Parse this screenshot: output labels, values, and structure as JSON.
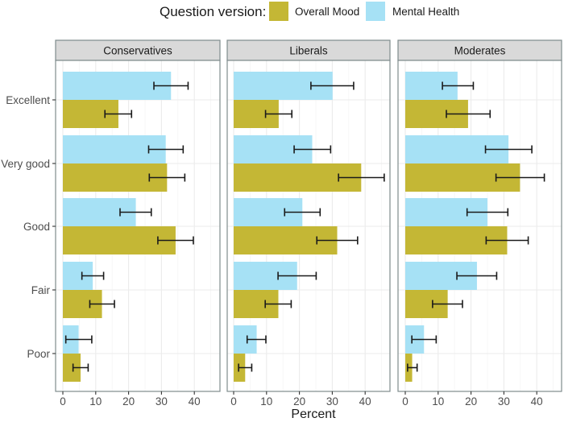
{
  "chart_data": {
    "type": "bar",
    "orientation": "horizontal",
    "title": "",
    "xlabel": "Percent",
    "ylabel": "",
    "xlim": [
      0,
      47.5
    ],
    "x_ticks": [
      0,
      10,
      20,
      30,
      40
    ],
    "x_tick_labels": [
      "0",
      "10",
      "20",
      "30",
      "40"
    ],
    "grid": true,
    "legend": {
      "title": "Question version:",
      "placement": "top",
      "entries": [
        {
          "name": "Overall Mood",
          "color": "#C4B735"
        },
        {
          "name": "Mental Health",
          "color": "#A6E1F5"
        }
      ]
    },
    "categories": [
      "Excellent",
      "Very good",
      "Good",
      "Fair",
      "Poor"
    ],
    "error_bars": true,
    "panels": [
      {
        "name": "Conservatives",
        "series": [
          {
            "name": "Mental Health",
            "values": [
              32.9,
              31.3,
              22.2,
              9.1,
              4.8
            ],
            "ci_low": [
              27.7,
              26.1,
              17.4,
              5.8,
              0.9
            ],
            "ci_high": [
              38.1,
              36.6,
              26.9,
              12.4,
              8.8
            ]
          },
          {
            "name": "Overall Mood",
            "values": [
              16.9,
              31.7,
              34.3,
              11.9,
              5.4
            ],
            "ci_low": [
              12.8,
              26.3,
              28.9,
              8.2,
              3.1
            ],
            "ci_high": [
              20.9,
              37.1,
              39.7,
              15.7,
              7.7
            ]
          }
        ]
      },
      {
        "name": "Liberals",
        "series": [
          {
            "name": "Mental Health",
            "values": [
              30.1,
              23.9,
              20.9,
              19.3,
              7.0
            ],
            "ci_low": [
              23.5,
              18.4,
              15.5,
              13.5,
              4.1
            ],
            "ci_high": [
              36.5,
              29.5,
              26.3,
              25.1,
              9.8
            ]
          },
          {
            "name": "Overall Mood",
            "values": [
              13.7,
              38.8,
              31.5,
              13.6,
              3.5
            ],
            "ci_low": [
              9.7,
              31.9,
              25.3,
              9.6,
              1.5
            ],
            "ci_high": [
              17.7,
              45.8,
              37.7,
              17.5,
              5.5
            ]
          }
        ]
      },
      {
        "name": "Moderates",
        "series": [
          {
            "name": "Mental Health",
            "values": [
              15.9,
              31.4,
              25.0,
              21.8,
              5.7
            ],
            "ci_low": [
              11.3,
              24.4,
              18.8,
              15.7,
              2.0
            ],
            "ci_high": [
              20.7,
              38.5,
              31.2,
              27.8,
              9.4
            ]
          },
          {
            "name": "Overall Mood",
            "values": [
              19.1,
              34.9,
              31.0,
              12.9,
              2.1
            ],
            "ci_low": [
              12.5,
              27.6,
              24.6,
              8.3,
              0.7
            ],
            "ci_high": [
              25.8,
              42.3,
              37.4,
              17.4,
              3.6
            ]
          }
        ]
      }
    ]
  },
  "colors": {
    "strip_bg": "#D9D9D9",
    "panel_border": "#7F8C8D",
    "grid_major": "#EBEBEB",
    "grid_minor": "#F5F5F5",
    "error_bar": "#1A1A1A"
  }
}
